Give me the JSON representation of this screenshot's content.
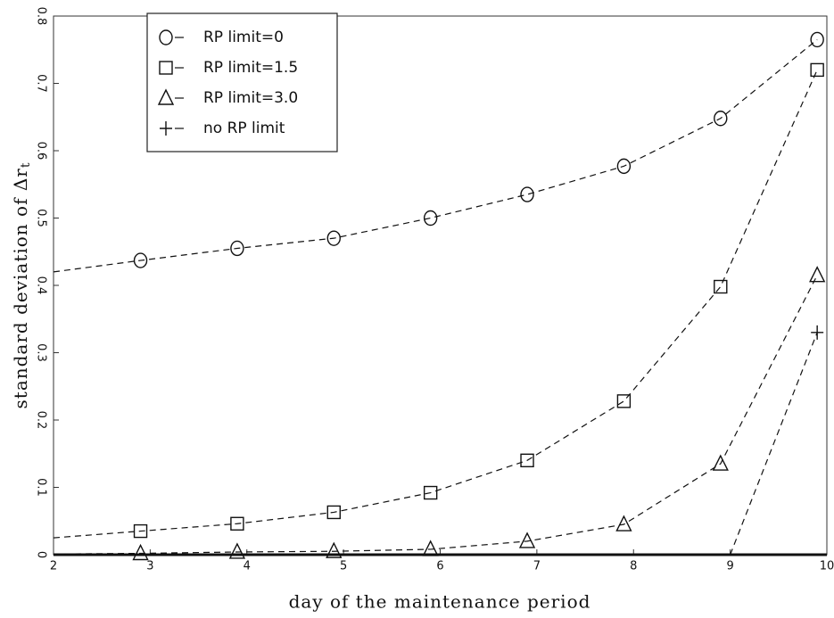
{
  "chart_data": {
    "type": "line",
    "x_label": "day of the maintenance period",
    "y_label": "standard deviation of Δr",
    "y_label_subscript": "t",
    "xlim": [
      2,
      10
    ],
    "xticks": [
      2,
      3,
      4,
      5,
      6,
      7,
      8,
      9,
      10
    ],
    "ylim": [
      0,
      0.8
    ],
    "yticks": [
      0,
      0.1,
      0.2,
      0.3,
      0.4,
      0.5,
      0.6,
      0.7,
      0.8
    ],
    "legend": "upper left",
    "series": [
      {
        "name": "RP limit=0",
        "marker": "circle",
        "color": "#111111",
        "x": [
          2,
          2.9,
          3.9,
          4.9,
          5.9,
          6.9,
          7.9,
          8.9,
          9.9
        ],
        "values": [
          0.42,
          0.437,
          0.455,
          0.47,
          0.5,
          0.535,
          0.577,
          0.648,
          0.765
        ]
      },
      {
        "name": "RP limit=1.5",
        "marker": "square",
        "color": "#111111",
        "x": [
          2,
          2.9,
          3.9,
          4.9,
          5.9,
          6.9,
          7.9,
          8.9,
          9.9
        ],
        "values": [
          0.025,
          0.035,
          0.046,
          0.063,
          0.092,
          0.14,
          0.228,
          0.398,
          0.72
        ]
      },
      {
        "name": "RP limit=3.0",
        "marker": "triangle",
        "color": "#111111",
        "x": [
          2,
          2.9,
          3.9,
          4.9,
          5.9,
          6.9,
          7.9,
          8.9,
          9.9
        ],
        "values": [
          0.001,
          0.002,
          0.004,
          0.005,
          0.008,
          0.02,
          0.045,
          0.135,
          0.415
        ]
      },
      {
        "name": "no RP limit",
        "marker": "plus",
        "color": "#111111",
        "x": [
          9,
          9.9
        ],
        "values": [
          0,
          0.33
        ]
      }
    ]
  }
}
